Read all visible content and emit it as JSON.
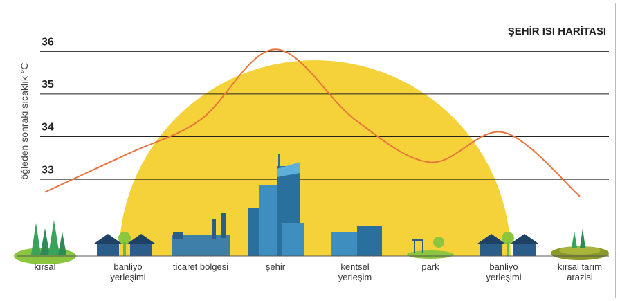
{
  "chart_data": {
    "type": "line",
    "title": "ŞEHİR ISI HARİTASI",
    "y_label": "öğleden sonraki sıcaklık °C",
    "categories": [
      "kırsal",
      "banliyö yerleşimi",
      "ticaret bölgesi",
      "şehir",
      "kentsel yerleşim",
      "park",
      "banliyö yerleşimi",
      "kırsal tarım arazisi"
    ],
    "series": [
      {
        "name": "sıcaklık",
        "color": "#e8743b",
        "values": [
          32.7,
          33.6,
          34.4,
          36.05,
          34.4,
          33.4,
          34.1,
          32.6
        ]
      }
    ],
    "ylim": [
      31.2,
      36.2
    ],
    "yticks": [
      33,
      34,
      35,
      36
    ],
    "grid": true
  }
}
